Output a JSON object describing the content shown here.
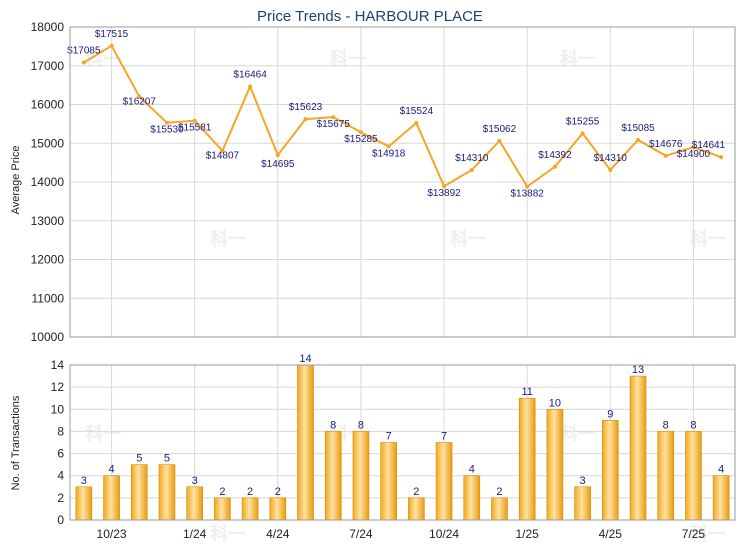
{
  "chart_data": [
    {
      "type": "line",
      "title": "Price Trends - HARBOUR PLACE",
      "ylabel": "Average Price",
      "ylim": [
        10000,
        18000
      ],
      "yticks": [
        "18000",
        "17000",
        "16000",
        "15000",
        "14000",
        "13000",
        "12000",
        "11000",
        "10000"
      ],
      "xticks": [
        "10/23",
        "1/24",
        "4/24",
        "7/24",
        "10/24",
        "1/25",
        "4/25",
        "7/25"
      ],
      "grid": true,
      "color": "#f5a623",
      "values": [
        17085,
        17515,
        16207,
        15530,
        15581,
        14807,
        16464,
        14695,
        15623,
        15675,
        15285,
        14918,
        15524,
        13892,
        14310,
        15062,
        13882,
        14392,
        15255,
        14310,
        15085,
        14676,
        14900,
        14641
      ],
      "labels": [
        "$17085",
        "$17515",
        "$16207",
        "$15530",
        "$15581",
        "$14807",
        "$16464",
        "$14695",
        "$15623",
        "$15675",
        "$15285",
        "$14918",
        "$15524",
        "$13892",
        "$14310",
        "$15062",
        "$13882",
        "$14392",
        "$15255",
        "$14310",
        "$15085",
        "$14676",
        "$14900",
        "$14641"
      ]
    },
    {
      "type": "bar",
      "ylabel": "No. of Transactions",
      "ylim": [
        0,
        14
      ],
      "yticks": [
        "14",
        "12",
        "10",
        "8",
        "6",
        "4",
        "2",
        "0"
      ],
      "xticks": [
        "10/23",
        "1/24",
        "4/24",
        "7/24",
        "10/24",
        "1/25",
        "4/25",
        "7/25"
      ],
      "grid": true,
      "color": "#f5a623",
      "values": [
        3,
        4,
        5,
        5,
        3,
        2,
        2,
        2,
        14,
        8,
        8,
        7,
        2,
        7,
        4,
        2,
        11,
        10,
        3,
        9,
        13,
        8,
        8,
        4
      ]
    }
  ],
  "watermark": "科一"
}
